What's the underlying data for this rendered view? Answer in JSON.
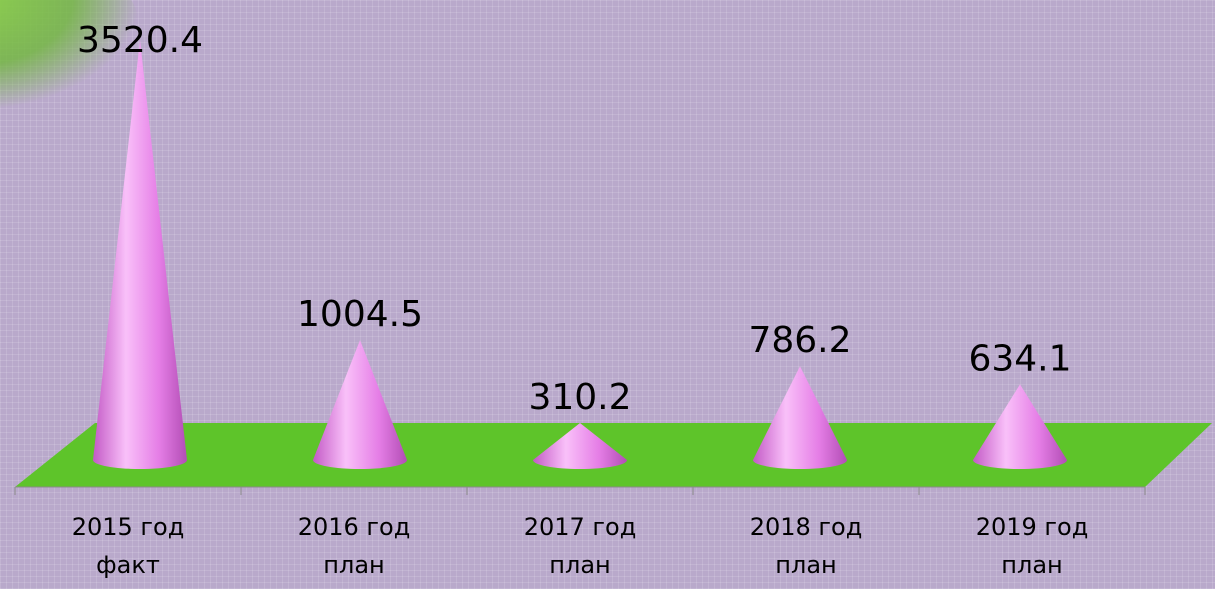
{
  "chart_data": {
    "type": "cone",
    "categories": [
      "2015 год факт",
      "2016 год план",
      "2017 год план",
      "2018 год план",
      "2019 год план"
    ],
    "values": [
      3520.4,
      1004.5,
      310.2,
      786.2,
      634.1
    ],
    "color": "#e87ee8"
  }
}
